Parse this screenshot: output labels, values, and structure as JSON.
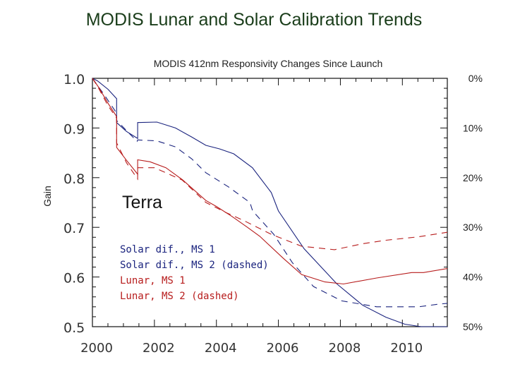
{
  "title": "MODIS Lunar and Solar Calibration Trends",
  "chart_data": {
    "type": "line",
    "title": "MODIS 412nm Responsivity Changes Since Launch",
    "ylabel": "Gain",
    "xlabel": "",
    "annotation": "Terra",
    "xlim": [
      2000,
      2011.45
    ],
    "ylim": [
      0.5,
      1.0
    ],
    "grid": false,
    "xticks": [
      2000,
      2002,
      2004,
      2006,
      2008,
      2010
    ],
    "xtick_labels": [
      "2000",
      "2002",
      "2004",
      "2006",
      "2008",
      "2010"
    ],
    "yticks": [
      1.0,
      0.9,
      0.8,
      0.7,
      0.6,
      0.5
    ],
    "ytick_labels": [
      "1.0",
      "0.9",
      "0.8",
      "0.7",
      "0.6",
      "0.5"
    ],
    "right_axis_labels": [
      "0%",
      "10%",
      "20%",
      "30%",
      "40%",
      "50%"
    ],
    "legend_position": "left-center",
    "series": [
      {
        "name": "Solar dif., MS 1",
        "color": "#1a237e",
        "dash": false,
        "points": [
          [
            2000,
            1.0
          ],
          [
            2000.16,
            0.995
          ],
          [
            2000.5,
            0.978
          ],
          [
            2000.78,
            0.959
          ],
          [
            2000.78,
            0.911
          ],
          [
            2001.1,
            0.893
          ],
          [
            2001.46,
            0.879
          ],
          [
            2001.46,
            0.911
          ],
          [
            2002.08,
            0.912
          ],
          [
            2002.68,
            0.9
          ],
          [
            2003.2,
            0.882
          ],
          [
            2003.66,
            0.865
          ],
          [
            2004.1,
            0.858
          ],
          [
            2004.56,
            0.848
          ],
          [
            2005.16,
            0.82
          ],
          [
            2005.77,
            0.77
          ],
          [
            2006.0,
            0.733
          ],
          [
            2006.83,
            0.657
          ],
          [
            2007.89,
            0.586
          ],
          [
            2008.72,
            0.543
          ],
          [
            2009.47,
            0.519
          ],
          [
            2010.08,
            0.505
          ],
          [
            2010.6,
            0.5
          ],
          [
            2011.45,
            0.5
          ]
        ]
      },
      {
        "name": "Solar dif., MS 2 (dashed)",
        "color": "#1a237e",
        "dash": true,
        "points": [
          [
            2000,
            1.0
          ],
          [
            2000.4,
            0.965
          ],
          [
            2000.78,
            0.93
          ],
          [
            2000.78,
            0.915
          ],
          [
            2001.44,
            0.873
          ],
          [
            2001.46,
            0.876
          ],
          [
            2002.08,
            0.874
          ],
          [
            2002.68,
            0.862
          ],
          [
            2003.2,
            0.838
          ],
          [
            2003.66,
            0.81
          ],
          [
            2004.4,
            0.781
          ],
          [
            2005.08,
            0.75
          ],
          [
            2005.17,
            0.733
          ],
          [
            2005.85,
            0.686
          ],
          [
            2006.45,
            0.629
          ],
          [
            2007.13,
            0.581
          ],
          [
            2008.04,
            0.552
          ],
          [
            2009.17,
            0.54
          ],
          [
            2010.53,
            0.54
          ],
          [
            2011.13,
            0.545
          ],
          [
            2011.45,
            0.547
          ]
        ]
      },
      {
        "name": "Lunar, MS 1",
        "color": "#b71c1c",
        "dash": false,
        "points": [
          [
            2000,
            1.0
          ],
          [
            2000.2,
            0.982
          ],
          [
            2000.5,
            0.95
          ],
          [
            2000.78,
            0.923
          ],
          [
            2000.78,
            0.861
          ],
          [
            2001.1,
            0.835
          ],
          [
            2001.46,
            0.807
          ],
          [
            2001.46,
            0.836
          ],
          [
            2001.86,
            0.832
          ],
          [
            2002.37,
            0.82
          ],
          [
            2002.9,
            0.796
          ],
          [
            2003.66,
            0.754
          ],
          [
            2004.0,
            0.742
          ],
          [
            2004.5,
            0.722
          ],
          [
            2005.0,
            0.7
          ],
          [
            2005.4,
            0.682
          ],
          [
            2006.15,
            0.638
          ],
          [
            2006.75,
            0.605
          ],
          [
            2007.5,
            0.59
          ],
          [
            2008.1,
            0.586
          ],
          [
            2009.17,
            0.598
          ],
          [
            2010.3,
            0.609
          ],
          [
            2010.68,
            0.609
          ],
          [
            2011.45,
            0.617
          ]
        ]
      },
      {
        "name": "Lunar, MS 2 (dashed)",
        "color": "#b71c1c",
        "dash": true,
        "points": [
          [
            2000,
            1.0
          ],
          [
            2000.2,
            0.98
          ],
          [
            2000.5,
            0.945
          ],
          [
            2000.78,
            0.92
          ],
          [
            2000.78,
            0.87
          ],
          [
            2001.1,
            0.83
          ],
          [
            2001.46,
            0.797
          ],
          [
            2001.46,
            0.82
          ],
          [
            2002.0,
            0.82
          ],
          [
            2002.9,
            0.795
          ],
          [
            2003.66,
            0.75
          ],
          [
            2004.3,
            0.73
          ],
          [
            2004.87,
            0.714
          ],
          [
            2005.77,
            0.686
          ],
          [
            2006.75,
            0.662
          ],
          [
            2007.81,
            0.655
          ],
          [
            2008.72,
            0.667
          ],
          [
            2009.47,
            0.674
          ],
          [
            2010.53,
            0.681
          ],
          [
            2011.45,
            0.69
          ]
        ]
      }
    ]
  }
}
